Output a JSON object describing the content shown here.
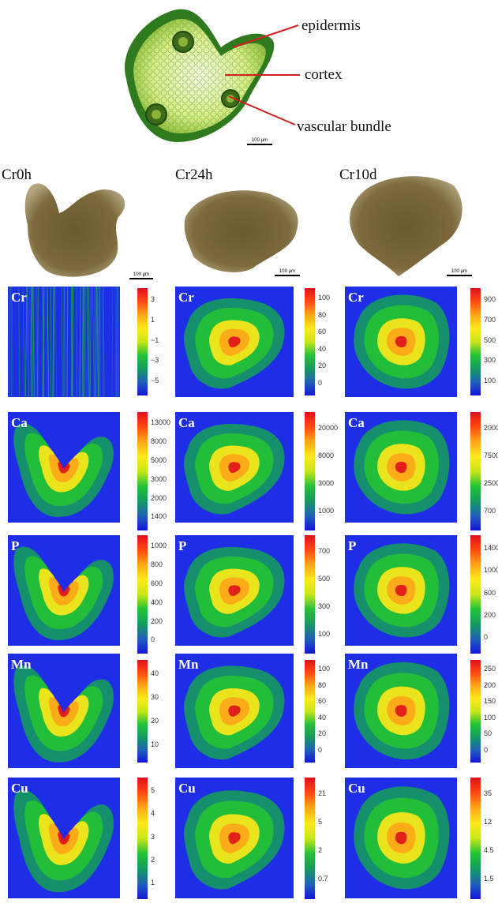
{
  "top_micrograph": {
    "labels": [
      "epidermis",
      "cortex",
      "vascular bundle"
    ],
    "scale_bar": "100 µm"
  },
  "samples": [
    {
      "title": "Cr0h",
      "scale_bar": "100 µm"
    },
    {
      "title": "Cr24h",
      "scale_bar": "100 µm"
    },
    {
      "title": "Cr10d",
      "scale_bar": "100 µm"
    }
  ],
  "colors": {
    "leader_line": "#d21f1f",
    "map_background": "#1e2ee6",
    "colorbar": [
      "#1515d8",
      "#1e62b8",
      "#159a5e",
      "#23c335",
      "#c8e61a",
      "#ffe81a",
      "#ffa51a",
      "#ff4a10",
      "#e0101a"
    ]
  },
  "element_maps": [
    {
      "element": "Cr",
      "sample": "Cr0h",
      "ticks": [
        "3",
        "1",
        "−1",
        "−3",
        "−5"
      ]
    },
    {
      "element": "Cr",
      "sample": "Cr24h",
      "ticks": [
        "100",
        "80",
        "60",
        "40",
        "20",
        "0"
      ]
    },
    {
      "element": "Cr",
      "sample": "Cr10d",
      "ticks": [
        "900",
        "700",
        "500",
        "300",
        "100"
      ]
    },
    {
      "element": "Ca",
      "sample": "Cr0h",
      "ticks": [
        "13000",
        "8000",
        "5000",
        "3000",
        "2000",
        "1400"
      ]
    },
    {
      "element": "Ca",
      "sample": "Cr24h",
      "ticks": [
        "20000",
        "8000",
        "3000",
        "1000"
      ]
    },
    {
      "element": "Ca",
      "sample": "Cr10d",
      "ticks": [
        "20000",
        "7500",
        "2500",
        "700"
      ]
    },
    {
      "element": "P",
      "sample": "Cr0h",
      "ticks": [
        "1000",
        "800",
        "600",
        "400",
        "200",
        "0"
      ]
    },
    {
      "element": "P",
      "sample": "Cr24h",
      "ticks": [
        "700",
        "500",
        "300",
        "100"
      ]
    },
    {
      "element": "P",
      "sample": "Cr10d",
      "ticks": [
        "1400",
        "1000",
        "600",
        "200",
        "0"
      ]
    },
    {
      "element": "Mn",
      "sample": "Cr0h",
      "ticks": [
        "40",
        "30",
        "20",
        "10"
      ]
    },
    {
      "element": "Mn",
      "sample": "Cr24h",
      "ticks": [
        "100",
        "80",
        "60",
        "40",
        "20",
        "0"
      ]
    },
    {
      "element": "Mn",
      "sample": "Cr10d",
      "ticks": [
        "250",
        "200",
        "150",
        "100",
        "50",
        "0"
      ]
    },
    {
      "element": "Cu",
      "sample": "Cr0h",
      "ticks": [
        "5",
        "4",
        "3",
        "2",
        "1"
      ]
    },
    {
      "element": "Cu",
      "sample": "Cr24h",
      "ticks": [
        "21",
        "5",
        "2",
        "0.7"
      ]
    },
    {
      "element": "Cu",
      "sample": "Cr10d",
      "ticks": [
        "35",
        "12",
        "4.5",
        "1.5"
      ]
    }
  ]
}
